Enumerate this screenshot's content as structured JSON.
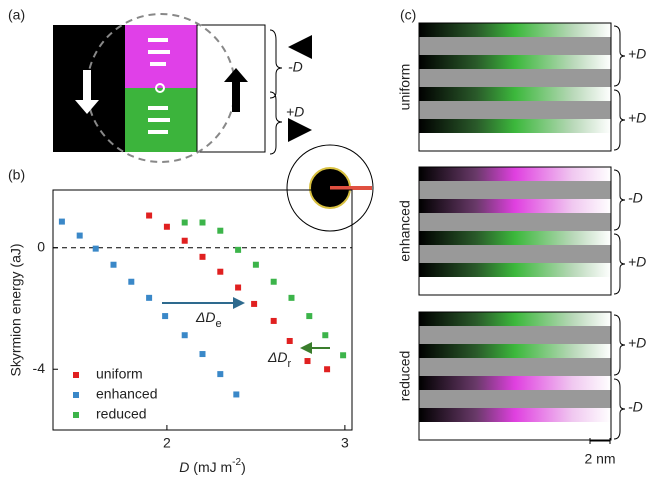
{
  "panels": {
    "a": {
      "label": "(a)",
      "top_label": "-D",
      "bottom_label": "+D"
    },
    "c": {
      "label": "(c)",
      "groups": [
        {
          "name": "uniform",
          "d_labels": [
            "+D",
            "+D"
          ]
        },
        {
          "name": "enhanced",
          "d_labels": [
            "-D",
            "+D"
          ]
        },
        {
          "name": "reduced",
          "d_labels": [
            "+D",
            "-D"
          ]
        }
      ],
      "scale": "2 nm"
    }
  },
  "chart_data": {
    "type": "scatter",
    "panel_label": "(b)",
    "ylabel": "Skyrmion energy (aJ)",
    "xlabel": {
      "symbol": "D",
      "unit": " (mJ m",
      "exponent": "-2",
      "close": ")"
    },
    "xlim": [
      1.36,
      3.04
    ],
    "ylim": [
      -6,
      1.9
    ],
    "xticks": [
      2,
      3
    ],
    "yticks": [
      0,
      -4
    ],
    "zero_line": true,
    "legend": "lower left",
    "annotations": [
      {
        "text": "ΔD",
        "sub": "e",
        "color": "#2e6a8e"
      },
      {
        "text": "ΔD",
        "sub": "r",
        "color": "#3a7d2c"
      }
    ],
    "series": [
      {
        "name": "uniform",
        "color": "#e02020",
        "x": [
          1.9,
          2.0,
          2.1,
          2.2,
          2.3,
          2.4,
          2.49,
          2.6,
          2.69,
          2.79,
          2.9
        ],
        "values": [
          1.06,
          0.69,
          0.23,
          -0.3,
          -0.79,
          -1.31,
          -1.85,
          -2.41,
          -3.07,
          -3.73,
          -4.0
        ]
      },
      {
        "name": "enhanced",
        "color": "#3a88c8",
        "x": [
          1.41,
          1.51,
          1.6,
          1.7,
          1.8,
          1.9,
          1.99,
          2.1,
          2.2,
          2.3,
          2.39
        ],
        "values": [
          0.86,
          0.4,
          -0.03,
          -0.56,
          -1.12,
          -1.65,
          -2.25,
          -2.88,
          -3.5,
          -4.16,
          -4.83
        ]
      },
      {
        "name": "reduced",
        "color": "#3cb44a",
        "x": [
          2.1,
          2.2,
          2.3,
          2.4,
          2.5,
          2.6,
          2.7,
          2.8,
          2.89,
          2.99
        ],
        "values": [
          0.83,
          0.83,
          0.56,
          -0.07,
          -0.56,
          -1.12,
          -1.65,
          -2.25,
          -2.88,
          -3.54
        ]
      }
    ]
  }
}
